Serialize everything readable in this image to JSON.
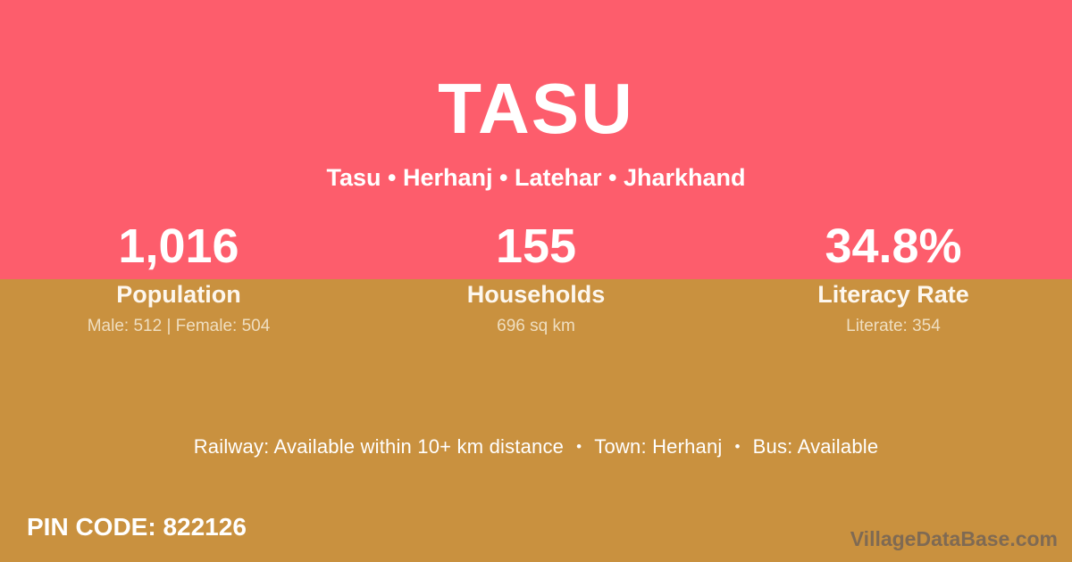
{
  "colors": {
    "top_band": "#FD5D6C",
    "bottom_band": "#C9913F",
    "text_primary": "#FFFFFF",
    "text_muted": "#EFDEC0",
    "watermark_text": "#52525F"
  },
  "header": {
    "title": "TASU",
    "subtitle": "Tasu • Herhanj • Latehar • Jharkhand"
  },
  "stats": [
    {
      "value": "1,016",
      "label": "Population",
      "detail": "Male: 512 | Female: 504"
    },
    {
      "value": "155",
      "label": "Households",
      "detail": "696 sq km"
    },
    {
      "value": "34.8%",
      "label": "Literacy Rate",
      "detail": "Literate: 354"
    }
  ],
  "info_line": {
    "segments": [
      "Railway: Available within 10+ km distance",
      "Town: Herhanj",
      "Bus: Available"
    ],
    "separator": "•"
  },
  "footer": {
    "pin_code": "PIN CODE: 822126",
    "watermark": "VillageDataBase.com"
  }
}
